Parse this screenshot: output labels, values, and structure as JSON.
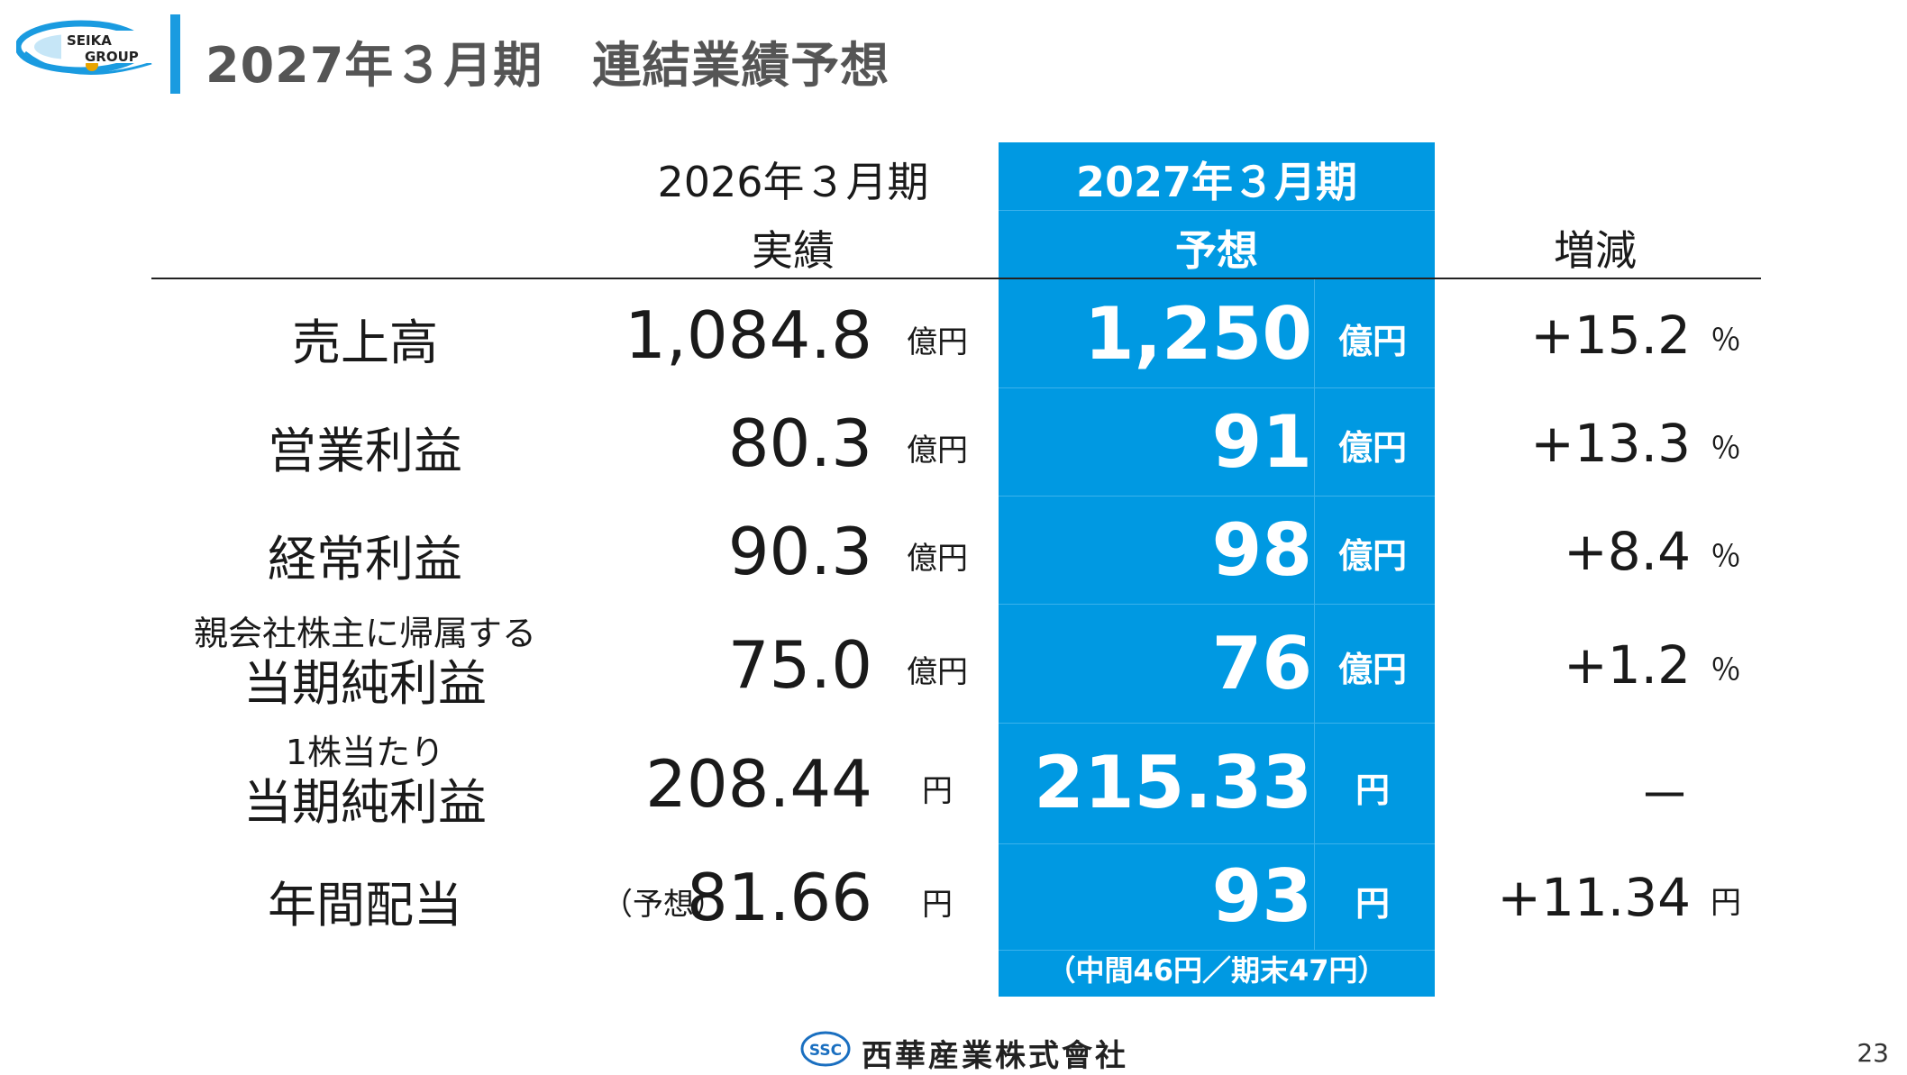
{
  "header": {
    "logo_text_line1": "SEIKA",
    "logo_text_line2": "GROUP",
    "title": "2027年３月期　連結業績予想"
  },
  "columns": {
    "actual_line1": "2026年３月期",
    "actual_line2": "実績",
    "forecast_line1": "2027年３月期",
    "forecast_line2": "予想",
    "change": "増減"
  },
  "rows": [
    {
      "label": "売上高",
      "actual": "1,084.8",
      "actual_unit": "億円",
      "forecast": "1,250",
      "forecast_unit": "億円",
      "change": "+15.2",
      "change_unit": "％"
    },
    {
      "label": "営業利益",
      "actual": "80.3",
      "actual_unit": "億円",
      "forecast": "91",
      "forecast_unit": "億円",
      "change": "+13.3",
      "change_unit": "％"
    },
    {
      "label": "経常利益",
      "actual": "90.3",
      "actual_unit": "億円",
      "forecast": "98",
      "forecast_unit": "億円",
      "change": "+8.4",
      "change_unit": "％"
    },
    {
      "label_small": "親会社株主に帰属する",
      "label": "当期純利益",
      "actual": "75.0",
      "actual_unit": "億円",
      "forecast": "76",
      "forecast_unit": "億円",
      "change": "+1.2",
      "change_unit": "％"
    },
    {
      "label_small": "1株当たり",
      "label": "当期純利益",
      "actual": "208.44",
      "actual_unit": "円",
      "forecast": "215.33",
      "forecast_unit": "円",
      "change": "－",
      "change_unit": ""
    },
    {
      "label": "年間配当",
      "actual_prefix": "（予想）",
      "actual": "81.66",
      "actual_unit": "円",
      "forecast": "93",
      "forecast_unit": "円",
      "change": "+11.34",
      "change_unit": "円"
    }
  ],
  "forecast_note": "（中間46円／期末47円）",
  "footer": {
    "logo_text": "SSC",
    "company": "西華産業株式會社",
    "page_number": "23"
  },
  "colors": {
    "accent_blue": "#0099e2",
    "header_bar": "#1a9be0",
    "title_gray": "#555555"
  }
}
